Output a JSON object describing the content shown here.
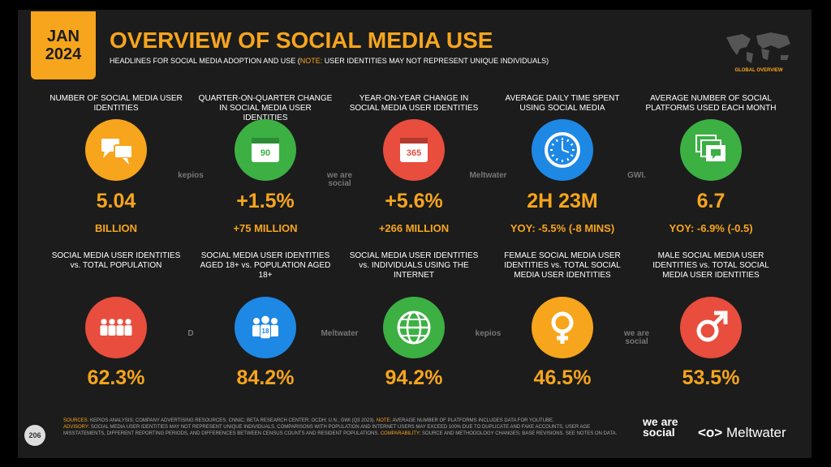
{
  "header": {
    "badge_month": "JAN",
    "badge_year": "2024",
    "title": "OVERVIEW OF SOCIAL MEDIA USE",
    "subtitle": "HEADLINES FOR SOCIAL MEDIA ADOPTION AND USE (",
    "subtitle_note_label": "NOTE:",
    "subtitle_note": " USER IDENTITIES MAY NOT REPRESENT UNIQUE INDIVIDUALS)",
    "map_label": "GLOBAL OVERVIEW"
  },
  "row1": [
    {
      "label": "NUMBER OF SOCIAL MEDIA USER IDENTITIES",
      "value": "5.04",
      "sub": "BILLION"
    },
    {
      "label": "QUARTER-ON-QUARTER CHANGE IN SOCIAL MEDIA USER IDENTITIES",
      "icon_text": "90",
      "value": "+1.5%",
      "sub": "+75 MILLION"
    },
    {
      "label": "YEAR-ON-YEAR CHANGE IN SOCIAL MEDIA USER IDENTITIES",
      "icon_text": "365",
      "value": "+5.6%",
      "sub": "+266 MILLION"
    },
    {
      "label": "AVERAGE DAILY TIME SPENT USING SOCIAL MEDIA",
      "value": "2H 23M",
      "sub": "YOY: -5.5% (-8 MINS)"
    },
    {
      "label": "AVERAGE NUMBER OF SOCIAL PLATFORMS USED EACH MONTH",
      "value": "6.7",
      "sub": "YOY: -6.9% (-0.5)"
    }
  ],
  "row2": [
    {
      "label": "SOCIAL MEDIA USER IDENTITIES vs. TOTAL POPULATION",
      "value": "62.3%"
    },
    {
      "label": "SOCIAL MEDIA USER IDENTITIES AGED 18+ vs. POPULATION AGED 18+",
      "icon_text": "18",
      "value": "84.2%"
    },
    {
      "label": "SOCIAL MEDIA USER IDENTITIES vs. INDIVIDUALS USING THE INTERNET",
      "value": "94.2%"
    },
    {
      "label": "FEMALE SOCIAL MEDIA USER IDENTITIES vs. TOTAL SOCIAL MEDIA USER IDENTITIES",
      "value": "46.5%"
    },
    {
      "label": "MALE SOCIAL MEDIA USER IDENTITIES vs. TOTAL SOCIAL MEDIA USER IDENTITIES",
      "value": "53.5%"
    }
  ],
  "logos": {
    "row1": [
      "kepios",
      "we are social",
      "Meltwater",
      "GWI."
    ],
    "row2": [
      "D",
      "Meltwater",
      "kepios",
      "we are social"
    ]
  },
  "footer": {
    "page": "206",
    "sources_label": "SOURCES:",
    "sources": " KEPIOS ANALYSIS; COMPANY ADVERTISING RESOURCES; CNNIC; BETA RESEARCH CENTER; OCDH; U.N.; GWI (Q3 2023). ",
    "note_label": "NOTE:",
    "note": " AVERAGE NUMBER OF PLATFORMS INCLUDES DATA FOR YOUTUBE.",
    "advisory_label": "ADVISORY:",
    "advisory": " SOCIAL MEDIA USER IDENTITIES MAY NOT REPRESENT UNIQUE INDIVIDUALS. COMPARISONS WITH POPULATION AND INTERNET USERS MAY EXCEED 100% DUE TO DUPLICATE AND FAKE ACCOUNTS, USER AGE MISSTATEMENTS, DIFFERENT REPORTING PERIODS, AND DIFFERENCES BETWEEN CENSUS COUNTS AND RESIDENT POPULATIONS. ",
    "comparability_label": "COMPARABILITY:",
    "comparability": " SOURCE AND METHODOLOGY CHANGES; BASE REVISIONS. SEE NOTES ON DATA.",
    "logo_was": "we are social",
    "logo_mw": "Meltwater"
  }
}
